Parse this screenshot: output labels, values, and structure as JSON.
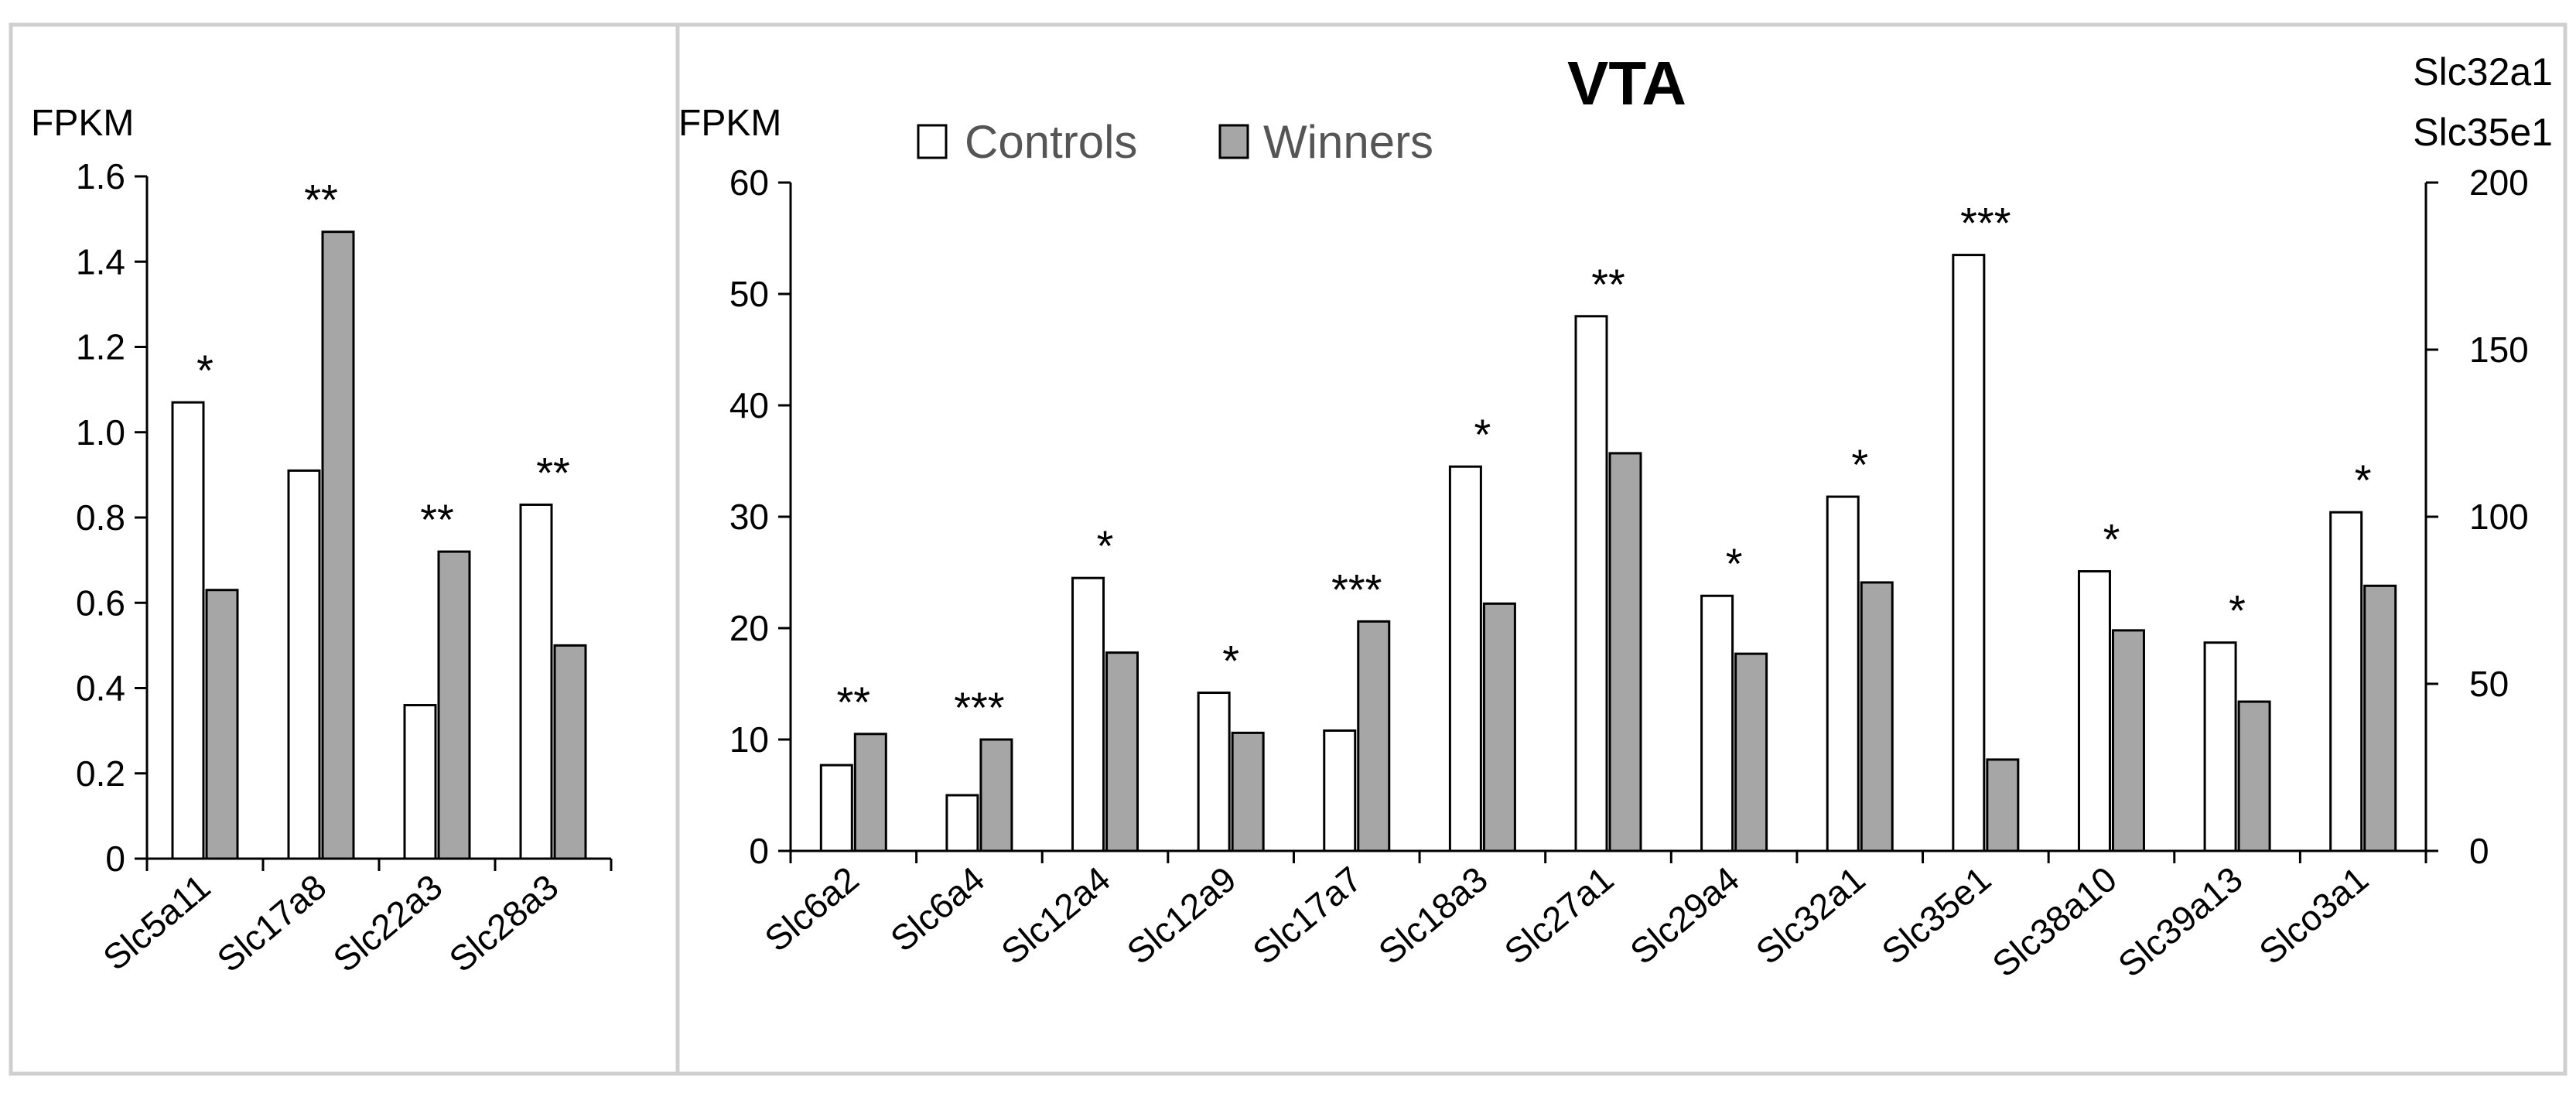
{
  "colors": {
    "controls": "#ffffff",
    "winners": "#a6a6a6",
    "edge": "#000000"
  },
  "legend": {
    "controls": "Controls",
    "winners": "Winners"
  },
  "chart_data": [
    {
      "type": "bar",
      "panel": "left",
      "title": "",
      "ylabel": "FPKM",
      "ylim": [
        0,
        1.6
      ],
      "yticks": [
        "0",
        "0.2",
        "0.4",
        "0.6",
        "0.8",
        "1.0",
        "1.2",
        "1.4",
        "1.6"
      ],
      "categories": [
        "Slc5a11",
        "Slc17a8",
        "Slc22a3",
        "Slc28a3"
      ],
      "series": [
        {
          "name": "Controls",
          "values": [
            1.07,
            0.91,
            0.36,
            0.83
          ]
        },
        {
          "name": "Winners",
          "values": [
            0.63,
            1.47,
            0.72,
            0.5
          ]
        }
      ],
      "significance": [
        "*",
        "**",
        "**",
        "**"
      ]
    },
    {
      "type": "bar",
      "panel": "right",
      "title": "VTA",
      "ylabel": "FPKM",
      "ylim": [
        0,
        60
      ],
      "yticks": [
        "0",
        "10",
        "20",
        "30",
        "40",
        "50",
        "60"
      ],
      "secondary_axis": {
        "label_lines": [
          "Slc32a1",
          "Slc35e1"
        ],
        "ylim": [
          0,
          200
        ],
        "yticks": [
          "0",
          "50",
          "100",
          "150",
          "200"
        ]
      },
      "categories": [
        "Slc6a2",
        "Slc6a4",
        "Slc12a4",
        "Slc12a9",
        "Slc17a7",
        "Slc18a3",
        "Slc27a1",
        "Slc29a4",
        "Slc32a1",
        "Slc35e1",
        "Slc38a10",
        "Slc39a13",
        "Slco3a1"
      ],
      "series": [
        {
          "name": "Controls",
          "values": [
            7.7,
            5.0,
            24.5,
            14.2,
            10.8,
            34.5,
            48.0,
            22.9,
            31.8,
            53.5,
            25.1,
            18.7,
            30.4
          ]
        },
        {
          "name": "Winners",
          "values": [
            10.5,
            10.0,
            17.8,
            10.6,
            20.6,
            22.2,
            35.7,
            17.7,
            24.1,
            8.2,
            19.8,
            13.4,
            23.8
          ]
        }
      ],
      "significance": [
        "**",
        "***",
        "*",
        "*",
        "***",
        "*",
        "**",
        "*",
        "*",
        "***",
        "*",
        "*",
        "*"
      ]
    }
  ]
}
